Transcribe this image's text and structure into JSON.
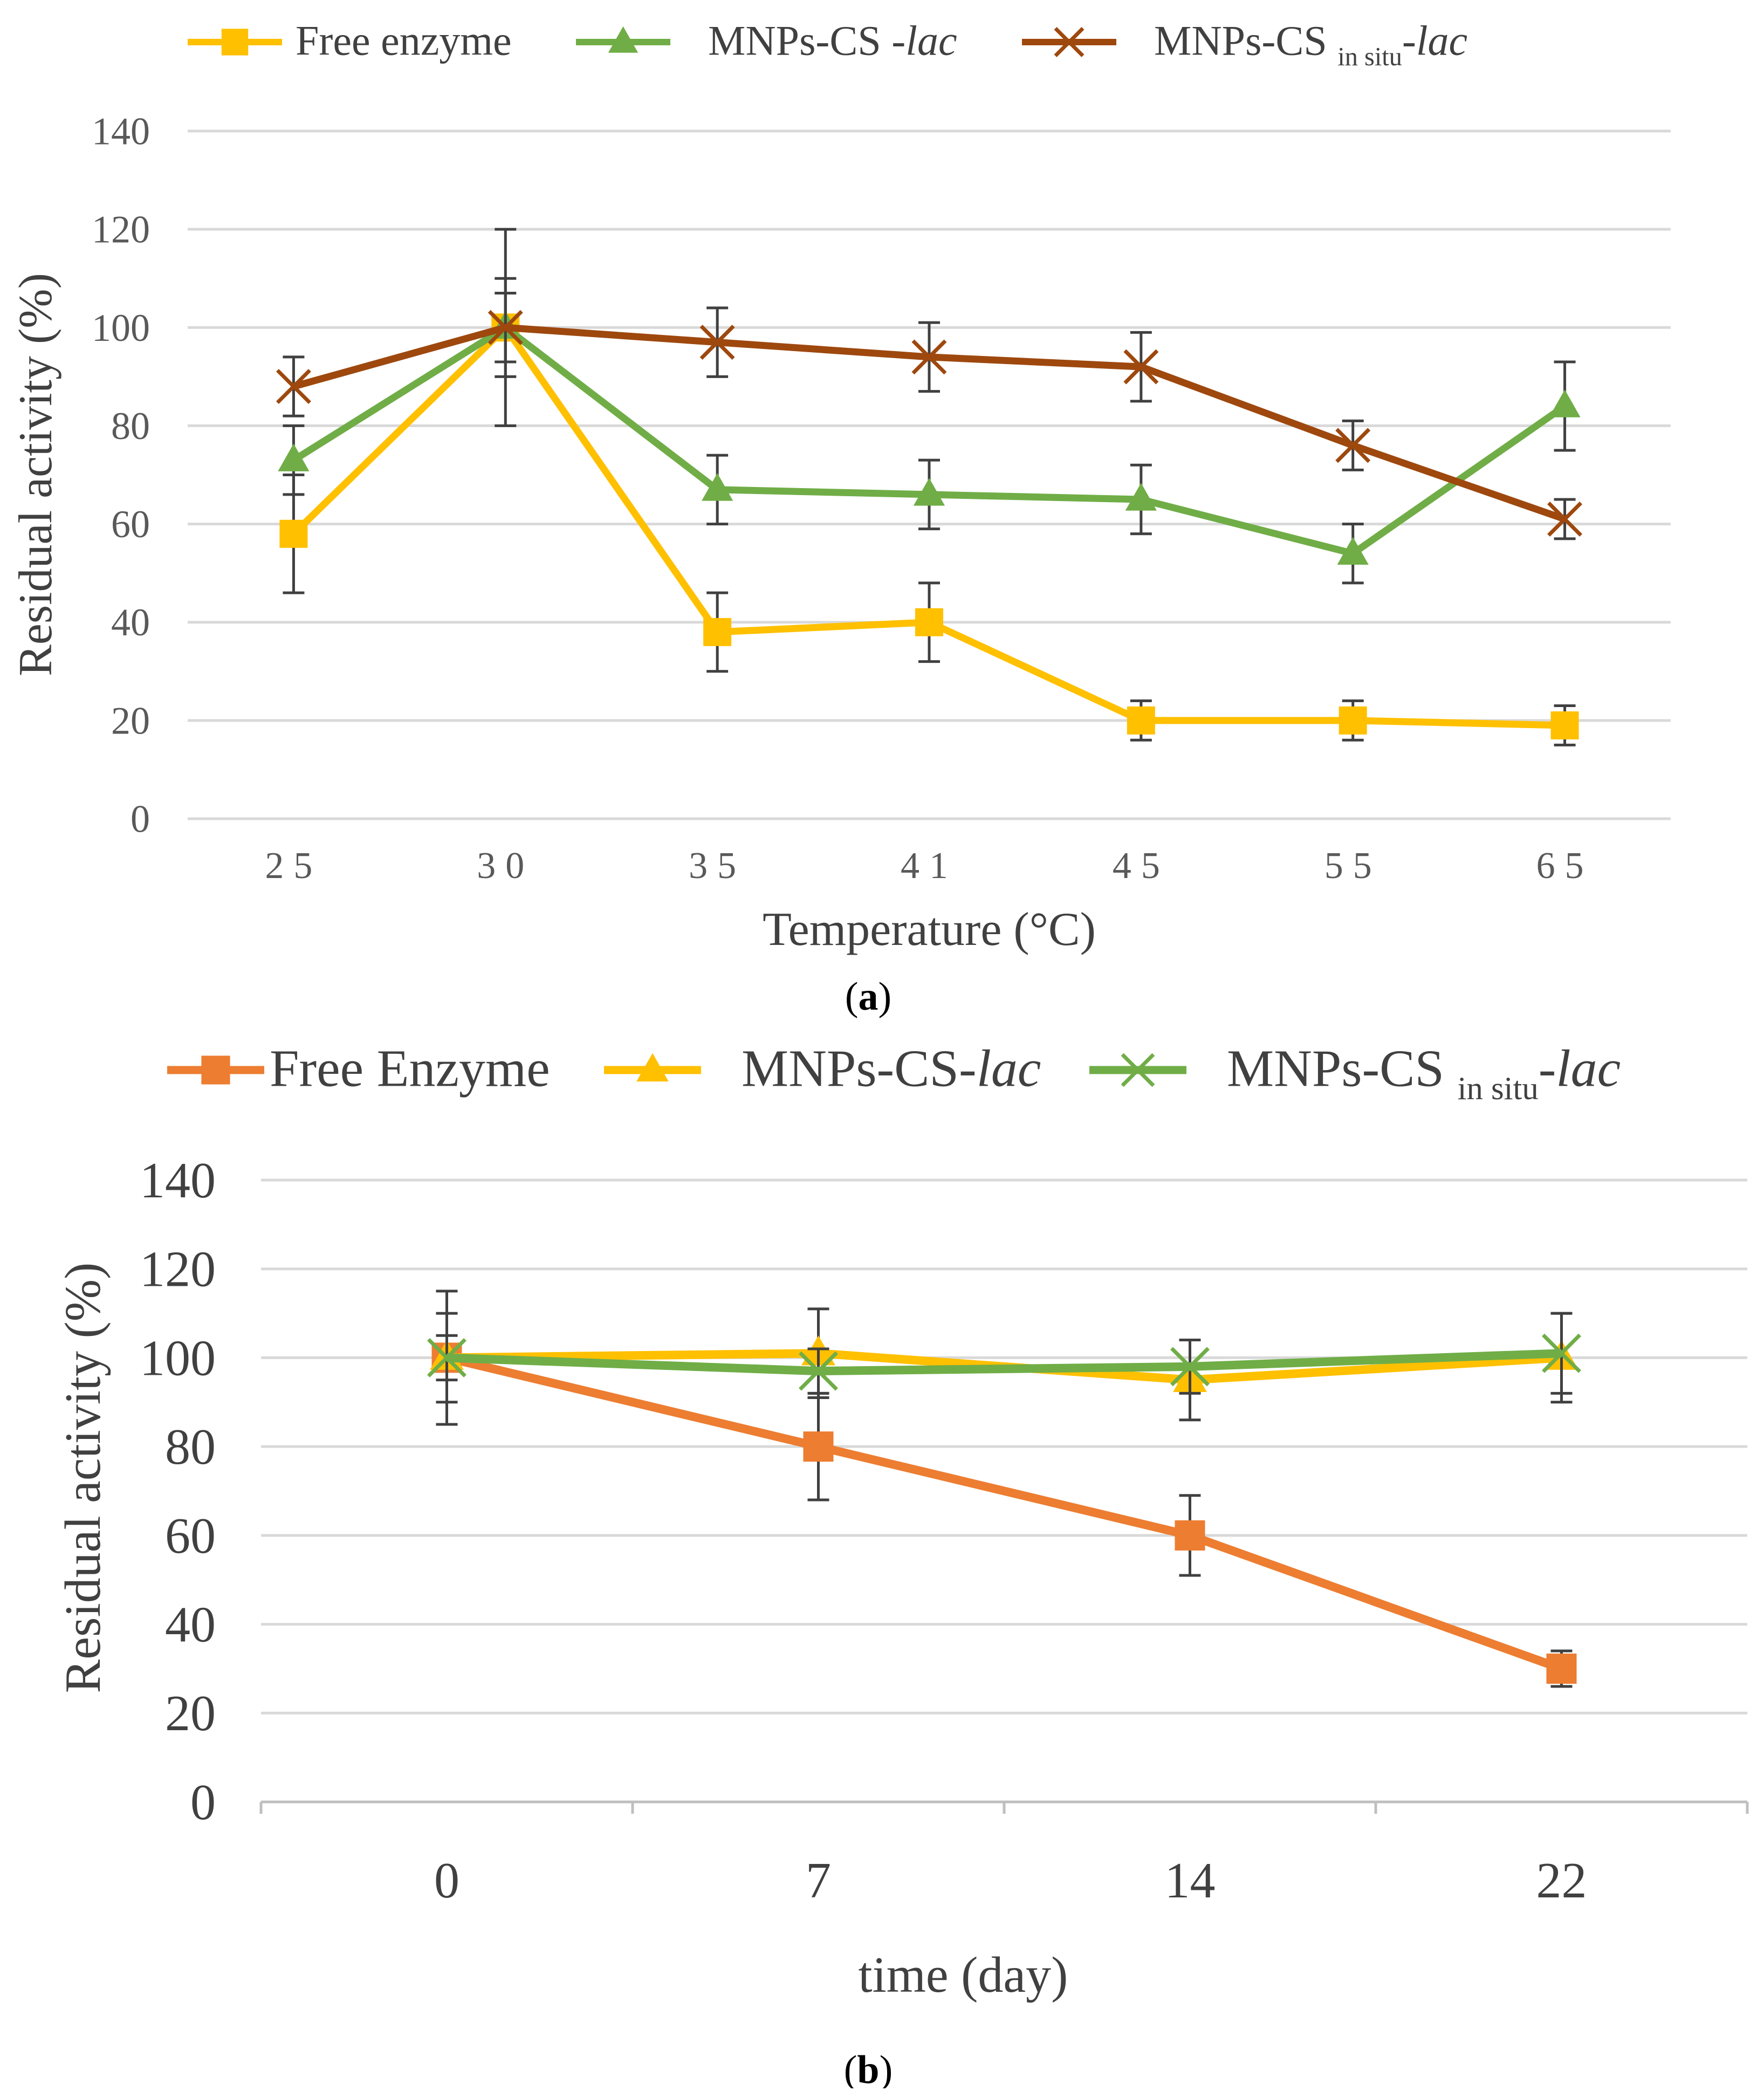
{
  "chart_data": [
    {
      "type": "line",
      "panel_label": "a",
      "xlabel": "Temperature (°C)",
      "ylabel": "Residual activity (%)",
      "ylim": [
        0,
        140
      ],
      "yticks": [
        "0",
        "20",
        "40",
        "60",
        "80",
        "100",
        "120",
        "140"
      ],
      "categories": [
        "25",
        "30",
        "35",
        "41",
        "45",
        "55",
        "65"
      ],
      "grid": true,
      "legend_position": "top",
      "series": [
        {
          "name": "Free enzyme",
          "marker": "square",
          "color": "#FFC000",
          "legend": {
            "base": "Free enzyme",
            "sub": "",
            "italic": ""
          },
          "values": [
            58,
            100,
            38,
            40,
            20,
            20,
            19
          ],
          "errors": [
            12,
            20,
            8,
            8,
            4,
            4,
            4
          ]
        },
        {
          "name": "MNPs-CS -lac",
          "marker": "triangle",
          "color": "#70AD47",
          "legend": {
            "base": "MNPs-CS -",
            "sub": "",
            "italic": "lac"
          },
          "values": [
            73,
            100,
            67,
            66,
            65,
            54,
            84
          ],
          "errors": [
            7,
            10,
            7,
            7,
            7,
            6,
            9
          ]
        },
        {
          "name": "MNPs-CS in situ-lac",
          "marker": "x",
          "color": "#9E480E",
          "legend": {
            "base": "MNPs-CS ",
            "sub": "in situ",
            "italic": "-lac"
          },
          "values": [
            88,
            100,
            97,
            94,
            92,
            76,
            61
          ],
          "errors": [
            6,
            7,
            7,
            7,
            7,
            5,
            4
          ]
        }
      ]
    },
    {
      "type": "line",
      "panel_label": "b",
      "xlabel": "time (day)",
      "ylabel": "Residual activity (%)",
      "ylim": [
        0,
        140
      ],
      "yticks": [
        "0",
        "20",
        "40",
        "60",
        "80",
        "100",
        "120",
        "140"
      ],
      "categories": [
        "0",
        "7",
        "14",
        "22"
      ],
      "grid": true,
      "legend_position": "top",
      "series": [
        {
          "name": "Free Enzyme",
          "marker": "square",
          "color": "#ED7D31",
          "legend": {
            "base": "Free Enzyme",
            "sub": "",
            "italic": ""
          },
          "values": [
            100,
            80,
            60,
            30
          ],
          "errors": [
            5,
            12,
            9,
            4
          ]
        },
        {
          "name": "MNPs-CS-lac",
          "marker": "triangle",
          "color": "#FFC000",
          "legend": {
            "base": "MNPs-CS-",
            "sub": "",
            "italic": "lac"
          },
          "values": [
            100,
            101,
            95,
            100
          ],
          "errors": [
            15,
            10,
            9,
            10
          ]
        },
        {
          "name": "MNPs-CS in situ-lac",
          "marker": "x",
          "color": "#70AD47",
          "legend": {
            "base": "MNPs-CS ",
            "sub": "in situ",
            "italic": "-lac"
          },
          "values": [
            100,
            97,
            98,
            101
          ],
          "errors": [
            10,
            5,
            6,
            9
          ]
        }
      ]
    }
  ]
}
